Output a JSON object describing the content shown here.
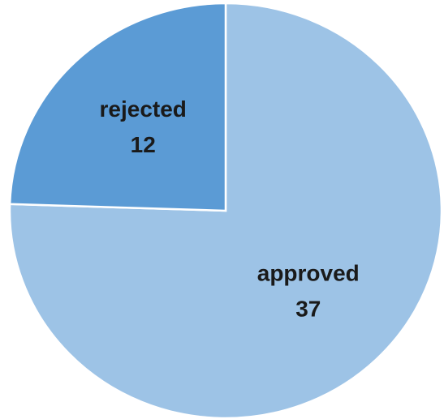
{
  "chart_data": {
    "type": "pie",
    "categories": [
      "approved",
      "rejected"
    ],
    "values": [
      37,
      12
    ],
    "colors": [
      "#9dc3e6",
      "#5b9bd5"
    ],
    "start_angle": 90,
    "direction": "clockwise"
  }
}
